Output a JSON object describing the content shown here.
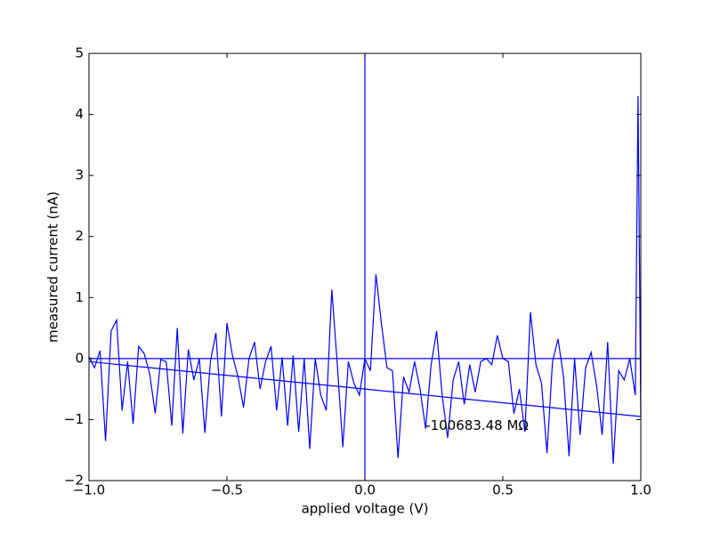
{
  "chart_data": {
    "type": "line",
    "xlabel": "applied voltage (V)",
    "ylabel": "measured current (nA)",
    "xlim": [
      -1,
      1
    ],
    "ylim": [
      -2,
      5
    ],
    "xticks": [
      {
        "value": -1,
        "label": "−1.0"
      },
      {
        "value": -0.5,
        "label": "−0.5"
      },
      {
        "value": 0,
        "label": "0.0"
      },
      {
        "value": 0.5,
        "label": "0.5"
      },
      {
        "value": 1,
        "label": "1.0"
      }
    ],
    "yticks": [
      {
        "value": -2,
        "label": "−2"
      },
      {
        "value": -1,
        "label": "−1"
      },
      0,
      1,
      2,
      3,
      4,
      5
    ],
    "axhline": 0,
    "axvline": 0,
    "line_color": "#0000ff",
    "series": [
      {
        "color": "#0000ff",
        "x": [
          -1.0,
          -0.98,
          -0.96,
          -0.94,
          -0.92,
          -0.9,
          -0.88,
          -0.86,
          -0.84,
          -0.82,
          -0.8,
          -0.78,
          -0.76,
          -0.74,
          -0.72,
          -0.7,
          -0.68,
          -0.66,
          -0.64,
          -0.62,
          -0.6,
          -0.58,
          -0.56,
          -0.54,
          -0.52,
          -0.5,
          -0.48,
          -0.46,
          -0.44,
          -0.42,
          -0.4,
          -0.38,
          -0.36,
          -0.34,
          -0.32,
          -0.3,
          -0.28,
          -0.26,
          -0.24,
          -0.22,
          -0.2,
          -0.18,
          -0.16,
          -0.14,
          -0.12,
          -0.1,
          -0.08,
          -0.06,
          -0.04,
          -0.02,
          0.0,
          0.02,
          0.04,
          0.06,
          0.08,
          0.1,
          0.12,
          0.14,
          0.16,
          0.18,
          0.2,
          0.22,
          0.24,
          0.26,
          0.28,
          0.3,
          0.32,
          0.34,
          0.36,
          0.38,
          0.4,
          0.42,
          0.44,
          0.46,
          0.48,
          0.5,
          0.52,
          0.54,
          0.56,
          0.58,
          0.6,
          0.62,
          0.64,
          0.66,
          0.68,
          0.7,
          0.72,
          0.74,
          0.76,
          0.78,
          0.8,
          0.82,
          0.84,
          0.86,
          0.88,
          0.9,
          0.92,
          0.94,
          0.96,
          0.98,
          0.99,
          1.0
        ],
        "values": [
          0.03,
          -0.15,
          0.13,
          -1.35,
          0.45,
          0.63,
          -0.85,
          -0.05,
          -1.07,
          0.2,
          0.08,
          -0.25,
          -0.9,
          -0.02,
          -0.05,
          -1.1,
          0.5,
          -1.23,
          0.15,
          -0.35,
          0.0,
          -1.22,
          -0.05,
          0.42,
          -0.95,
          0.58,
          0.05,
          -0.3,
          -0.8,
          0.0,
          0.27,
          -0.5,
          -0.05,
          0.2,
          -0.85,
          0.02,
          -1.1,
          0.05,
          -1.2,
          0.0,
          -1.48,
          0.0,
          -0.6,
          -0.85,
          1.13,
          -0.1,
          -1.45,
          -0.05,
          -0.4,
          -0.6,
          0.0,
          -0.2,
          1.38,
          0.57,
          -0.15,
          -0.2,
          -1.63,
          -0.3,
          -0.55,
          -0.05,
          -0.5,
          -1.15,
          -0.1,
          0.45,
          -0.6,
          -1.3,
          -0.35,
          -0.05,
          -0.75,
          -0.1,
          -0.55,
          -0.05,
          0.0,
          -0.1,
          0.38,
          0.0,
          -0.05,
          -0.9,
          -0.5,
          -1.2,
          0.76,
          -0.1,
          -0.4,
          -1.55,
          -0.05,
          0.32,
          -0.3,
          -1.6,
          0.0,
          -1.25,
          -0.15,
          0.1,
          -0.45,
          -1.25,
          0.27,
          -1.72,
          -0.2,
          -0.35,
          0.0,
          -0.6,
          4.3,
          -0.95
        ]
      },
      {
        "color": "#0000ff",
        "x": [
          -1,
          1
        ],
        "values": [
          -0.05,
          -0.95
        ]
      }
    ],
    "annotation": {
      "text": "-100683.48 MΩ",
      "x": 0.22,
      "y": -1.1
    }
  }
}
